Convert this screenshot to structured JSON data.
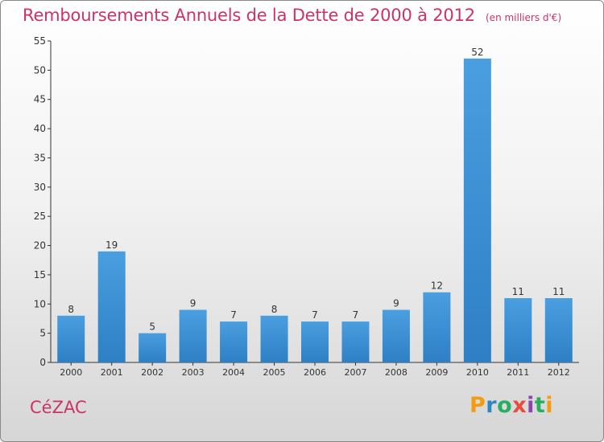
{
  "header": {
    "title": "Remboursements Annuels de la Dette de 2000 à 2012",
    "unit": "(en milliers d'€)"
  },
  "commune": "CéZAC",
  "brand": {
    "name": "Proxiti",
    "letters": [
      "P",
      "r",
      "o",
      "x",
      "i",
      "t",
      "i"
    ],
    "colors": [
      "#f39c12",
      "#2e86c1",
      "#27ae60",
      "#e74c3c",
      "#8e44ad",
      "#27ae60",
      "#f39c12"
    ]
  },
  "colors": {
    "bar": "#4a9fe0",
    "bar_dark": "#2e7fc4",
    "title": "#cc3366",
    "axis": "#333333"
  },
  "chart_data": {
    "type": "bar",
    "categories": [
      "2000",
      "2001",
      "2002",
      "2003",
      "2004",
      "2005",
      "2006",
      "2007",
      "2008",
      "2009",
      "2010",
      "2011",
      "2012"
    ],
    "values": [
      8,
      19,
      5,
      9,
      7,
      8,
      7,
      7,
      9,
      12,
      52,
      11,
      11
    ],
    "ylim": [
      0,
      55
    ],
    "yticks": [
      0,
      5,
      10,
      15,
      20,
      25,
      30,
      35,
      40,
      45,
      50,
      55
    ],
    "grid": false,
    "data_labels": true
  }
}
